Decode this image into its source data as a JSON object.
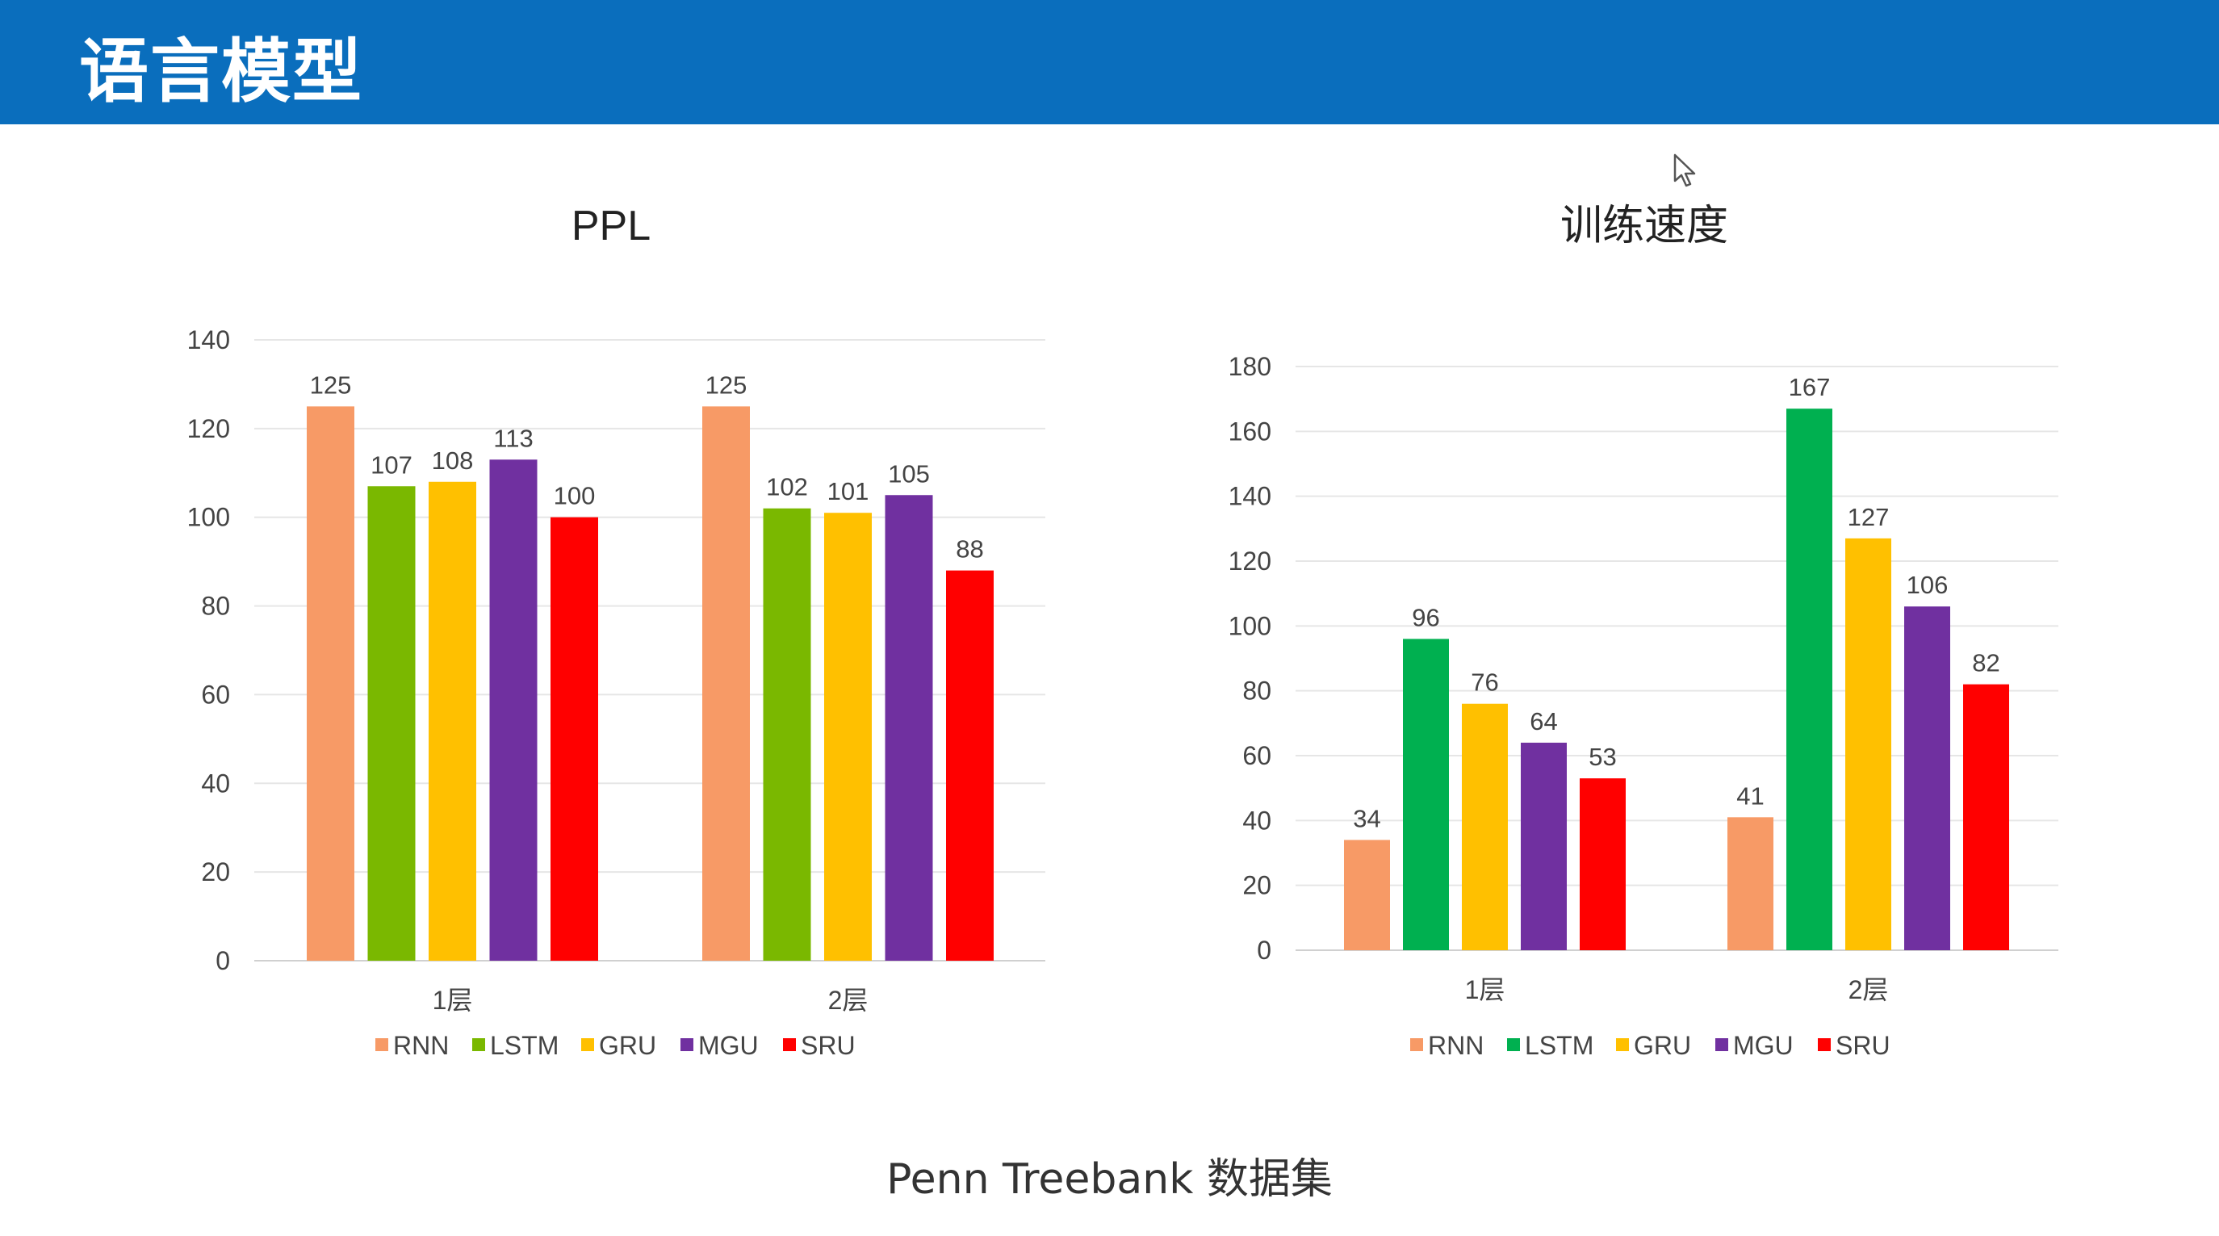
{
  "header": {
    "title": "语言模型",
    "background": "#0a6ebd"
  },
  "footer": {
    "caption": "Penn Treebank 数据集"
  },
  "chart_data": [
    {
      "type": "bar",
      "title": "PPL",
      "categories": [
        "1层",
        "2层"
      ],
      "ylim": [
        0,
        140
      ],
      "yticks": [
        0,
        20,
        40,
        60,
        80,
        100,
        120,
        140
      ],
      "grid": true,
      "legend_position": "bottom",
      "series": [
        {
          "name": "RNN",
          "color": "#f79a66",
          "values": [
            125,
            125
          ]
        },
        {
          "name": "LSTM",
          "color": "#7ab800",
          "values": [
            107,
            102
          ]
        },
        {
          "name": "GRU",
          "color": "#ffc000",
          "values": [
            108,
            101
          ]
        },
        {
          "name": "MGU",
          "color": "#7030a0",
          "values": [
            113,
            105
          ]
        },
        {
          "name": "SRU",
          "color": "#ff0000",
          "values": [
            100,
            88
          ]
        }
      ]
    },
    {
      "type": "bar",
      "title": "训练速度",
      "categories": [
        "1层",
        "2层"
      ],
      "ylim": [
        0,
        180
      ],
      "yticks": [
        0,
        20,
        40,
        60,
        80,
        100,
        120,
        140,
        160,
        180
      ],
      "grid": true,
      "legend_position": "bottom",
      "series": [
        {
          "name": "RNN",
          "color": "#f79a66",
          "values": [
            34,
            41
          ]
        },
        {
          "name": "LSTM",
          "color": "#00b050",
          "values": [
            96,
            167
          ]
        },
        {
          "name": "GRU",
          "color": "#ffc000",
          "values": [
            76,
            127
          ]
        },
        {
          "name": "MGU",
          "color": "#7030a0",
          "values": [
            64,
            106
          ]
        },
        {
          "name": "SRU",
          "color": "#ff0000",
          "values": [
            53,
            82
          ]
        }
      ]
    }
  ]
}
